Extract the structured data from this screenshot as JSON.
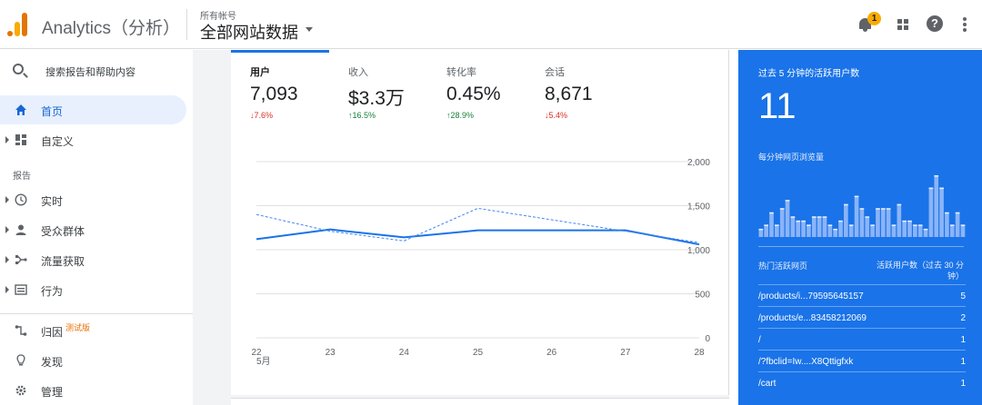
{
  "header": {
    "app_title": "Analytics（分析）",
    "account_label": "所有帐号",
    "account_name": "全部网站数据",
    "notification_count": "1"
  },
  "sidebar": {
    "search_placeholder": "搜索报告和帮助内容",
    "items_top": [
      {
        "label": "首页",
        "icon": "home-icon",
        "active": true
      },
      {
        "label": "自定义",
        "icon": "dashboard-icon"
      }
    ],
    "section_label": "报告",
    "items_reports": [
      {
        "label": "实时",
        "icon": "clock-icon"
      },
      {
        "label": "受众群体",
        "icon": "person-icon"
      },
      {
        "label": "流量获取",
        "icon": "acquisition-icon"
      },
      {
        "label": "行为",
        "icon": "behavior-icon"
      }
    ],
    "items_bottom": [
      {
        "label": "归因",
        "icon": "attribution-icon",
        "tag": "测试版"
      },
      {
        "label": "发现",
        "icon": "lightbulb-icon"
      },
      {
        "label": "管理",
        "icon": "gear-icon"
      }
    ]
  },
  "metrics": [
    {
      "label": "用户",
      "value": "7,093",
      "delta": "7.6%",
      "direction": "down",
      "active": true
    },
    {
      "label": "收入",
      "value": "$3.3万",
      "delta": "16.5%",
      "direction": "up"
    },
    {
      "label": "转化率",
      "value": "0.45%",
      "delta": "28.9%",
      "direction": "up"
    },
    {
      "label": "会话",
      "value": "8,671",
      "delta": "5.4%",
      "direction": "down"
    }
  ],
  "chart_data": {
    "type": "line",
    "x": [
      "22",
      "23",
      "24",
      "25",
      "26",
      "27",
      "28"
    ],
    "x_sublabel": "5月",
    "y_ticks": [
      "2,000",
      "1,500",
      "1,000",
      "500",
      "0"
    ],
    "ylim": [
      0,
      2000
    ],
    "series": [
      {
        "style": "solid",
        "color": "#1a73e8",
        "values": [
          1120,
          1230,
          1140,
          1220,
          1220,
          1220,
          1060
        ]
      },
      {
        "style": "dashed",
        "color": "#4285f4",
        "values": [
          1400,
          1210,
          1100,
          1470,
          1340,
          1210,
          1080
        ]
      }
    ]
  },
  "realtime": {
    "title": "过去 5 分钟的活跃用户数",
    "count": "11",
    "bars_label": "每分钟网页浏览量",
    "bars": [
      2,
      3,
      6,
      3,
      7,
      9,
      5,
      4,
      4,
      3,
      5,
      5,
      5,
      3,
      2,
      4,
      8,
      3,
      10,
      7,
      5,
      3,
      7,
      7,
      7,
      3,
      8,
      4,
      4,
      3,
      3,
      2,
      12,
      15,
      12,
      6,
      3,
      6,
      3
    ],
    "col_page": "热门活跃网页",
    "col_users": "活跃用户数（过去 30 分钟）",
    "rows": [
      {
        "page": "/products/i...79595645157",
        "users": "5"
      },
      {
        "page": "/products/e...83458212069",
        "users": "2"
      },
      {
        "page": "/",
        "users": "1"
      },
      {
        "page": "/?fbclid=Iw....X8Qttigfxk",
        "users": "1"
      },
      {
        "page": "/cart",
        "users": "1"
      }
    ]
  }
}
